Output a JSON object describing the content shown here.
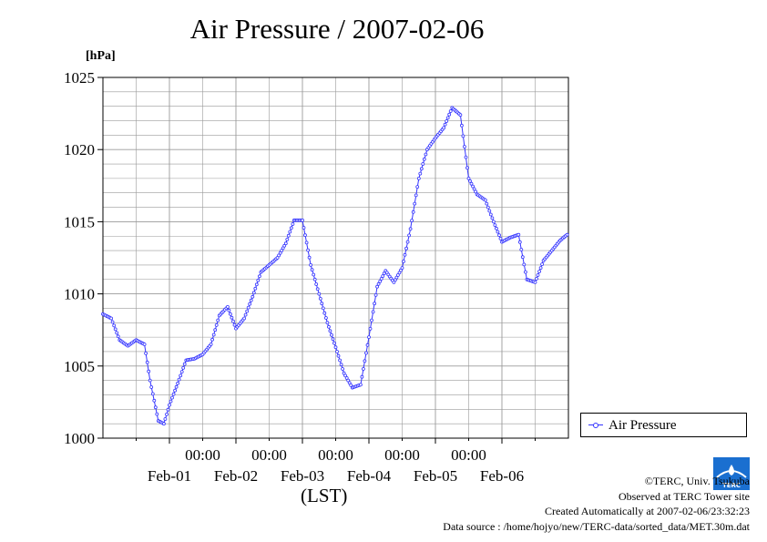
{
  "title": "Air Pressure / 2007-02-06",
  "unit": "[hPa]",
  "xaxis_label": "(LST)",
  "legend_label": "Air Pressure",
  "credits": {
    "org": "©TERC, Univ. Tsukuba",
    "site": "Observed at TERC Tower site",
    "created": "Created Automatically at 2007-02-06/23:32:23",
    "source": "Data source : /home/hojyo/new/TERC-data/sorted_data/MET.30m.dat"
  },
  "logo_text": "TERC",
  "colors": {
    "series": "#3333ff",
    "grid": "#9a9a9a",
    "logo": "#1a6fd0"
  },
  "chart_data": {
    "type": "line",
    "title": "Air Pressure / 2007-02-06",
    "ylabel": "[hPa]",
    "xlabel": "(LST)",
    "ylim": [
      1000,
      1025
    ],
    "yticks": [
      1000,
      1005,
      1010,
      1015,
      1020,
      1025
    ],
    "xlim": [
      "2007-01-31 00:00",
      "2007-02-07 00:00"
    ],
    "xtick_time_labels": [
      "00:00",
      "00:00",
      "00:00",
      "00:00",
      "00:00"
    ],
    "xtick_day_labels": [
      "Feb-01",
      "Feb-02",
      "Feb-03",
      "Feb-04",
      "Feb-05",
      "Feb-06"
    ],
    "grid": true,
    "legend_position": "right",
    "series": [
      {
        "name": "Air Pressure",
        "x": [
          "2007-01-31 00:00",
          "2007-01-31 03:00",
          "2007-01-31 06:00",
          "2007-01-31 09:00",
          "2007-01-31 12:00",
          "2007-01-31 15:00",
          "2007-01-31 17:00",
          "2007-01-31 20:00",
          "2007-01-31 22:00",
          "2007-02-01 00:00",
          "2007-02-01 03:00",
          "2007-02-01 06:00",
          "2007-02-01 09:00",
          "2007-02-01 12:00",
          "2007-02-01 15:00",
          "2007-02-01 18:00",
          "2007-02-01 21:00",
          "2007-02-02 00:00",
          "2007-02-02 03:00",
          "2007-02-02 06:00",
          "2007-02-02 09:00",
          "2007-02-02 12:00",
          "2007-02-02 15:00",
          "2007-02-02 18:00",
          "2007-02-02 21:00",
          "2007-02-03 00:00",
          "2007-02-03 03:00",
          "2007-02-03 06:00",
          "2007-02-03 09:00",
          "2007-02-03 12:00",
          "2007-02-03 15:00",
          "2007-02-03 18:00",
          "2007-02-03 21:00",
          "2007-02-04 00:00",
          "2007-02-04 03:00",
          "2007-02-04 06:00",
          "2007-02-04 09:00",
          "2007-02-04 12:00",
          "2007-02-04 15:00",
          "2007-02-04 18:00",
          "2007-02-04 21:00",
          "2007-02-05 00:00",
          "2007-02-05 03:00",
          "2007-02-05 06:00",
          "2007-02-05 09:00",
          "2007-02-05 12:00",
          "2007-02-05 15:00",
          "2007-02-05 18:00",
          "2007-02-05 21:00",
          "2007-02-06 00:00",
          "2007-02-06 03:00",
          "2007-02-06 06:00",
          "2007-02-06 09:00",
          "2007-02-06 12:00",
          "2007-02-06 15:00",
          "2007-02-06 18:00",
          "2007-02-06 21:00",
          "2007-02-06 23:30"
        ],
        "values": [
          1008.6,
          1008.3,
          1006.8,
          1006.4,
          1006.8,
          1006.5,
          1004.0,
          1001.2,
          1001.0,
          1002.3,
          1003.8,
          1005.4,
          1005.5,
          1005.8,
          1006.5,
          1008.5,
          1009.1,
          1007.6,
          1008.3,
          1009.8,
          1011.5,
          1012.0,
          1012.5,
          1013.5,
          1015.1,
          1015.1,
          1012.0,
          1010.0,
          1008.0,
          1006.3,
          1004.5,
          1003.5,
          1003.7,
          1007.0,
          1010.5,
          1011.6,
          1010.8,
          1011.8,
          1014.5,
          1018.0,
          1020.0,
          1020.8,
          1021.5,
          1022.9,
          1022.4,
          1018.0,
          1016.9,
          1016.5,
          1015.0,
          1013.6,
          1013.9,
          1014.1,
          1011.0,
          1010.8,
          1012.3,
          1013.0,
          1013.7,
          1014.1
        ]
      }
    ]
  }
}
